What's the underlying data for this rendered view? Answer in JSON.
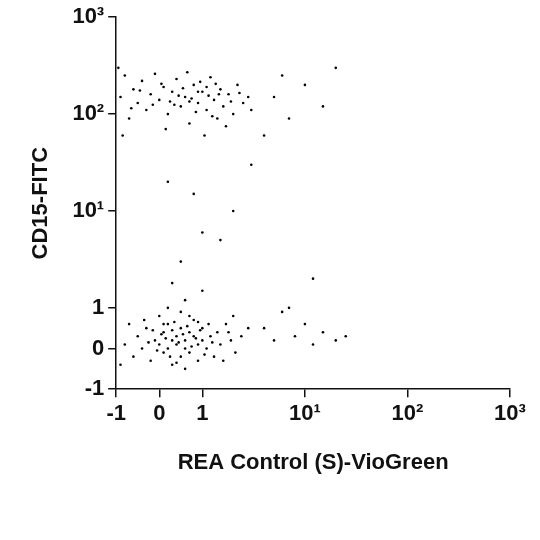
{
  "chart_data": {
    "type": "scatter",
    "xlabel": "REA Control (S)-VioGreen",
    "ylabel": "CD15-FITC",
    "color": "#000000",
    "grid": false,
    "xlim": [
      -1,
      1000
    ],
    "ylim": [
      -1,
      1000
    ],
    "xticks": [
      -1,
      0,
      1,
      {
        "value": 10,
        "label": "10¹"
      },
      {
        "value": 100,
        "label": "10²"
      },
      {
        "value": 1000,
        "label": "10³"
      }
    ],
    "yticks": [
      -1,
      0,
      1,
      {
        "value": 10,
        "label": "10¹"
      },
      {
        "value": 100,
        "label": "10²"
      },
      {
        "value": 1000,
        "label": "10³"
      }
    ],
    "x": [
      -0.8,
      -0.6,
      -0.5,
      -0.4,
      -0.3,
      -0.2,
      -0.1,
      0.0,
      0.1,
      0.1,
      0.2,
      0.2,
      0.3,
      0.3,
      0.4,
      0.4,
      0.5,
      0.5,
      0.6,
      0.6,
      0.7,
      0.7,
      0.8,
      0.8,
      0.9,
      0.9,
      1.0,
      1.0,
      1.1,
      1.2,
      1.3,
      1.4,
      1.5,
      1.7,
      1.9,
      2.1,
      2.4,
      2.8,
      -0.7,
      -0.9,
      0.0,
      0.2,
      0.5,
      0.6,
      0.3,
      0.45,
      0.55,
      0.65,
      0.75,
      0.85,
      0.15,
      0.05,
      -0.05,
      -0.15,
      -0.25,
      0.35,
      0.95,
      1.05,
      1.15,
      1.25,
      0.4,
      0.25,
      0.7,
      0.9,
      1.6,
      1.8,
      0.1,
      -0.35,
      0.6,
      1.0,
      0.3,
      2.0,
      4,
      5,
      6,
      8,
      10,
      12,
      15,
      20,
      25,
      7,
      0.5,
      1,
      2,
      0.2,
      3,
      1.5,
      12,
      0.8,
      -0.9,
      -0.8,
      -0.7,
      -0.6,
      -0.5,
      -0.4,
      -0.3,
      -0.2,
      -0.1,
      0.0,
      0.1,
      0.2,
      0.3,
      0.4,
      0.5,
      0.6,
      0.7,
      0.8,
      0.9,
      1.0,
      1.1,
      1.2,
      1.3,
      1.4,
      1.5,
      1.6,
      1.8,
      2.0,
      2.2,
      2.5,
      2.8,
      3.0,
      -0.95,
      -0.85,
      0.15,
      0.65,
      1.05,
      0.35,
      0.55,
      0.75,
      0.85,
      0.95,
      1.15,
      1.25,
      1.35,
      1.7,
      1.9,
      2.3,
      -0.45,
      -0.15,
      0.05,
      0.45,
      0.25,
      -0.65,
      1.45,
      0.7,
      0.9,
      1.1,
      5,
      7,
      10,
      15,
      20,
      4,
      6
    ],
    "values": [
      0.1,
      -0.2,
      0.3,
      0.0,
      0.5,
      -0.3,
      0.2,
      0.1,
      -0.1,
      0.4,
      0.0,
      0.6,
      0.2,
      -0.4,
      0.3,
      0.1,
      -0.2,
      0.5,
      0.2,
      0.0,
      0.4,
      -0.1,
      0.3,
      0.7,
      0.1,
      -0.3,
      0.2,
      0.5,
      0.0,
      0.3,
      -0.2,
      0.4,
      0.1,
      0.6,
      0.2,
      -0.1,
      0.3,
      0.5,
      0.6,
      -0.4,
      0.8,
      1.0,
      0.9,
      -0.5,
      0.45,
      0.15,
      0.35,
      0.55,
      0.05,
      0.25,
      0.25,
      0.35,
      -0.05,
      0.45,
      0.15,
      0.65,
      0.45,
      -0.15,
      0.6,
      0.15,
      -0.35,
      -0.2,
      0.8,
      0.65,
      -0.3,
      0.4,
      0.6,
      0.7,
      1.2,
      1.5,
      1.8,
      0.8,
      0.5,
      0.2,
      0.9,
      0.3,
      0.6,
      0.1,
      0.4,
      0.2,
      0.3,
      1.0,
      3,
      6,
      10,
      20,
      30,
      5,
      2,
      15,
      150,
      250,
      90,
      180,
      130,
      220,
      110,
      160,
      260,
      140,
      190,
      100,
      170,
      230,
      120,
      150,
      80,
      200,
      130,
      170,
      110,
      240,
      140,
      90,
      180,
      120,
      160,
      100,
      200,
      130,
      150,
      110,
      300,
      60,
      70,
      270,
      60,
      125,
      185,
      145,
      105,
      215,
      155,
      95,
      205,
      75,
      135,
      165,
      175,
      125,
      205,
      155,
      135,
      115,
      160,
      135,
      170,
      190,
      150,
      90,
      200,
      120,
      300,
      60,
      250
    ]
  }
}
